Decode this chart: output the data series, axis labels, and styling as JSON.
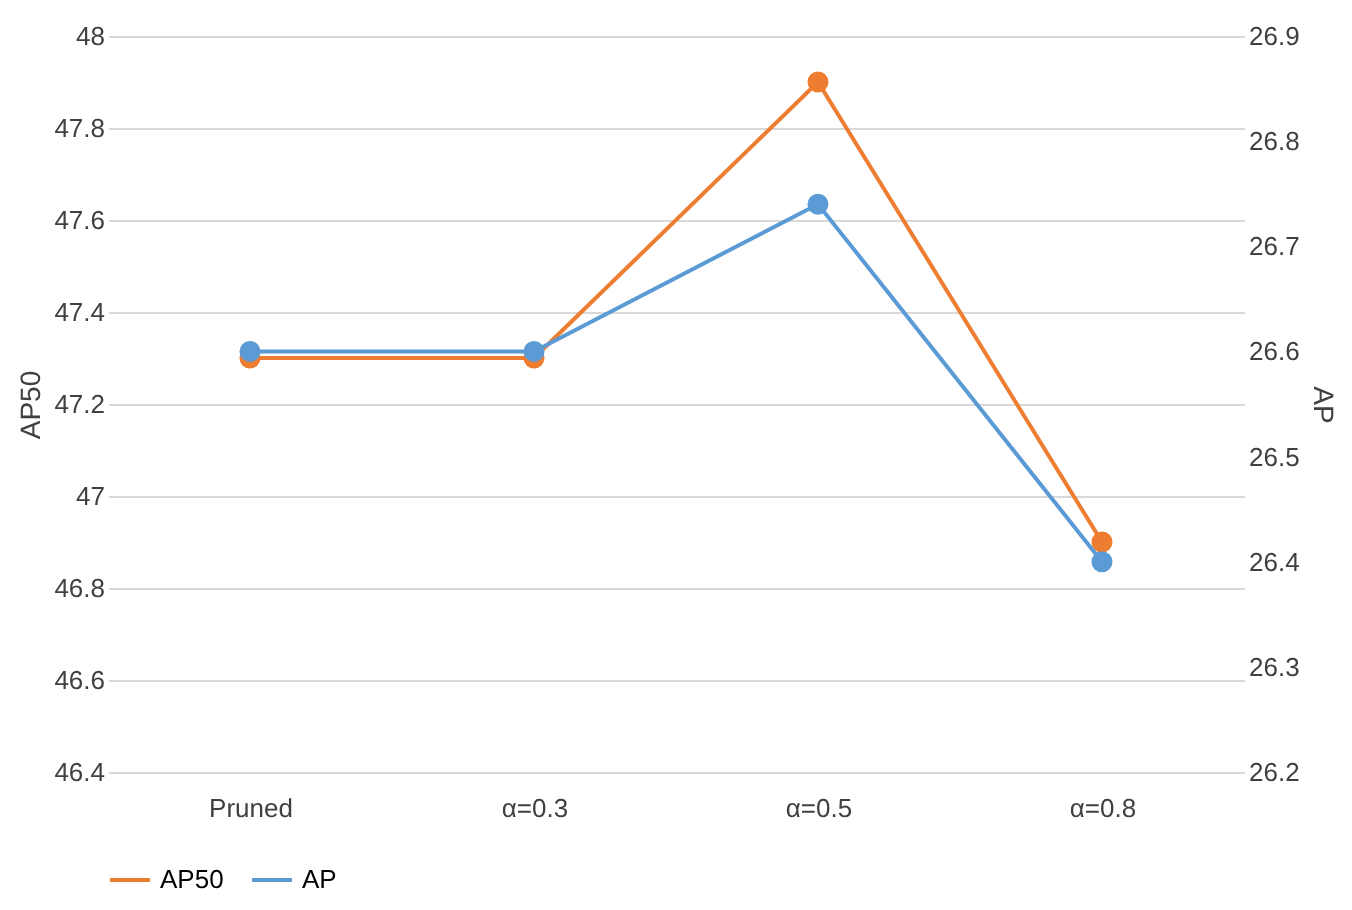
{
  "chart_data": {
    "type": "line",
    "categories": [
      "Pruned",
      "α=0.3",
      "α=0.5",
      "α=0.8"
    ],
    "series": [
      {
        "name": "AP50",
        "color": "#ed7d31",
        "values": [
          47.3,
          47.3,
          47.9,
          46.9
        ]
      },
      {
        "name": "AP",
        "color": "#5b9bd5",
        "values": [
          26.6,
          26.6,
          26.74,
          26.4
        ],
        "axis": "y2"
      }
    ],
    "ylabel": "AP50",
    "y2label": "AP",
    "ylim": [
      46.4,
      48
    ],
    "yticks": [
      46.4,
      46.6,
      46.8,
      47,
      47.2,
      47.4,
      47.6,
      47.8,
      48
    ],
    "y2lim": [
      26.2,
      26.9
    ],
    "y2ticks": [
      26.2,
      26.3,
      26.4,
      26.5,
      26.6,
      26.7,
      26.8,
      26.9
    ],
    "grid": "y",
    "legend": "bottom",
    "marker": "circle",
    "line_style": "solid"
  }
}
